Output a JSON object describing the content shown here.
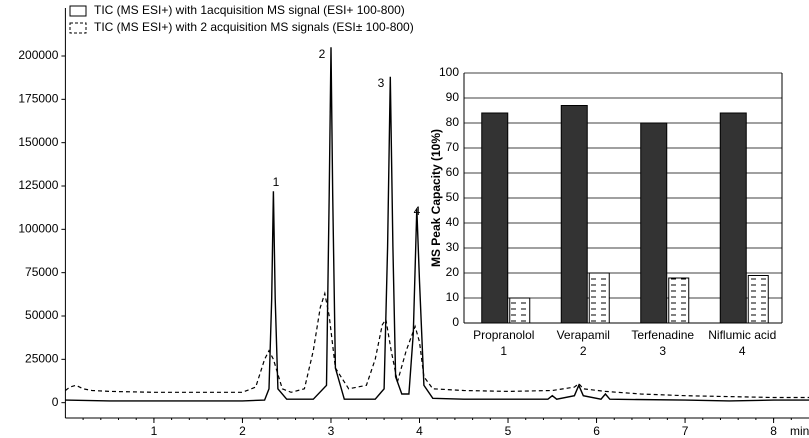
{
  "chart_data": [
    {
      "type": "line",
      "xlim": [
        0,
        8.4
      ],
      "ylim": [
        -10000,
        215000
      ],
      "xticks": [
        1,
        2,
        3,
        4,
        5,
        6,
        7,
        8
      ],
      "yticks": [
        0,
        25000,
        50000,
        75000,
        100000,
        125000,
        150000,
        175000,
        200000
      ],
      "xlabel": "min",
      "legend": "top-left",
      "annotations": [
        "1",
        "2",
        "3",
        "4"
      ],
      "series": [
        {
          "name": "TIC (MS ESI+) with 1acquisition MS signal (ESI+ 100-800)",
          "color": "#000000",
          "dash": false,
          "x": [
            0.0,
            0.5,
            1,
            1.5,
            2,
            2.25,
            2.3,
            2.33,
            2.35,
            2.37,
            2.4,
            2.5,
            2.8,
            2.95,
            2.98,
            3.0,
            3.02,
            3.05,
            3.15,
            3.5,
            3.6,
            3.64,
            3.67,
            3.7,
            3.73,
            3.8,
            3.88,
            3.93,
            3.97,
            4.0,
            4.05,
            4.15,
            4.5,
            5,
            5.45,
            5.5,
            5.55,
            5.75,
            5.8,
            5.85,
            6.05,
            6.1,
            6.15,
            7,
            7.5,
            8,
            8.4
          ],
          "values": [
            1500,
            1000,
            1000,
            1000,
            1000,
            1500,
            8000,
            60000,
            122000,
            60000,
            8000,
            2000,
            2000,
            10000,
            120000,
            205000,
            120000,
            20000,
            2000,
            2000,
            8000,
            90000,
            188000,
            90000,
            15000,
            5000,
            5000,
            40000,
            112000,
            70000,
            10000,
            2500,
            2000,
            2000,
            2000,
            4000,
            2000,
            4000,
            10000,
            4000,
            2000,
            5000,
            2000,
            1500,
            1000,
            1500,
            1500
          ]
        },
        {
          "name": "TIC (MS ESI+) with 2 acquisition MS signals (ESI± 100-800)",
          "color": "#000000",
          "dash": true,
          "x": [
            0,
            0.05,
            0.12,
            0.2,
            0.3,
            0.5,
            1,
            1.5,
            2,
            2.15,
            2.25,
            2.3,
            2.35,
            2.45,
            2.55,
            2.7,
            2.8,
            2.88,
            2.93,
            2.98,
            3.05,
            3.2,
            3.4,
            3.5,
            3.58,
            3.62,
            3.68,
            3.75,
            3.85,
            3.95,
            4.0,
            4.05,
            4.15,
            4.5,
            5,
            5.5,
            5.75,
            5.8,
            5.85,
            6.1,
            6.5,
            7,
            7.5,
            8,
            8.4
          ],
          "values": [
            7000,
            9000,
            10000,
            8000,
            7000,
            6500,
            6000,
            6000,
            6000,
            9000,
            25000,
            30000,
            25000,
            8000,
            6000,
            8000,
            30000,
            55000,
            63000,
            50000,
            20000,
            8000,
            10000,
            25000,
            45000,
            48000,
            30000,
            12000,
            30000,
            44000,
            35000,
            15000,
            8000,
            7000,
            6500,
            7000,
            9000,
            11000,
            8000,
            6500,
            5000,
            4000,
            3500,
            3000,
            3000
          ]
        }
      ]
    },
    {
      "type": "bar",
      "ylabel": "MS Peak Capacity (10%)",
      "ylim": [
        0,
        100
      ],
      "yticks": [
        0,
        10,
        20,
        30,
        40,
        50,
        60,
        70,
        80,
        90,
        100
      ],
      "grid": true,
      "categories": [
        "Propranolol",
        "Verapamil",
        "Terfenadine",
        "Niflumic acid"
      ],
      "category_numbers": [
        "1",
        "2",
        "3",
        "4"
      ],
      "series": [
        {
          "color": "#333333",
          "hatch": false,
          "values": [
            84,
            87,
            80,
            84
          ]
        },
        {
          "color": "#ffffff",
          "hatch": true,
          "values": [
            10,
            20,
            18,
            19
          ]
        }
      ]
    }
  ]
}
